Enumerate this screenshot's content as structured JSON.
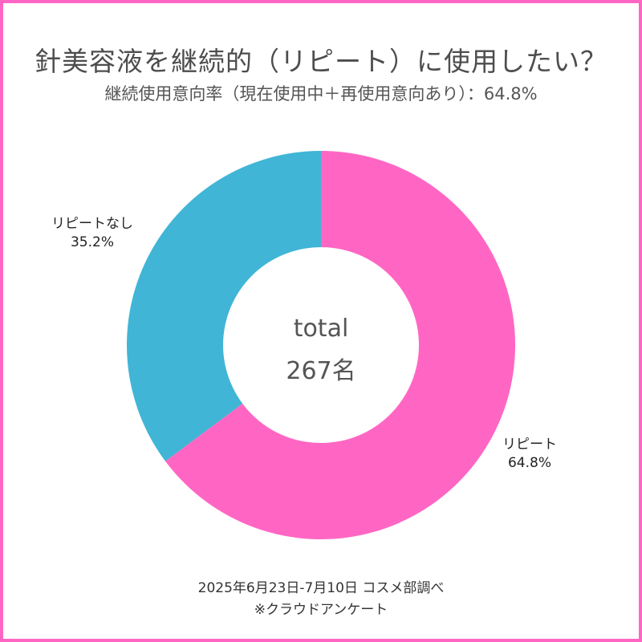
{
  "chart_data": {
    "type": "pie",
    "variant": "donut",
    "title": "針美容液を継続的（リピート）に使用したい？",
    "subtitle": "継続使用意向率（現在使用中＋再使用意向あり）：64.8%",
    "slices": [
      {
        "label": "リピート",
        "value": 64.8,
        "value_text": "64.8%",
        "color": "#ff66c4"
      },
      {
        "label": "リピートなし",
        "value": 35.2,
        "value_text": "35.2%",
        "color": "#40b5d6"
      }
    ],
    "center_line1": "total",
    "center_line2": "267名",
    "footer_line1": "2025年6月23日-7月10日 コスメ部調べ",
    "footer_line2": "※クラウドアンケート",
    "border_color": "#ff66c4"
  }
}
